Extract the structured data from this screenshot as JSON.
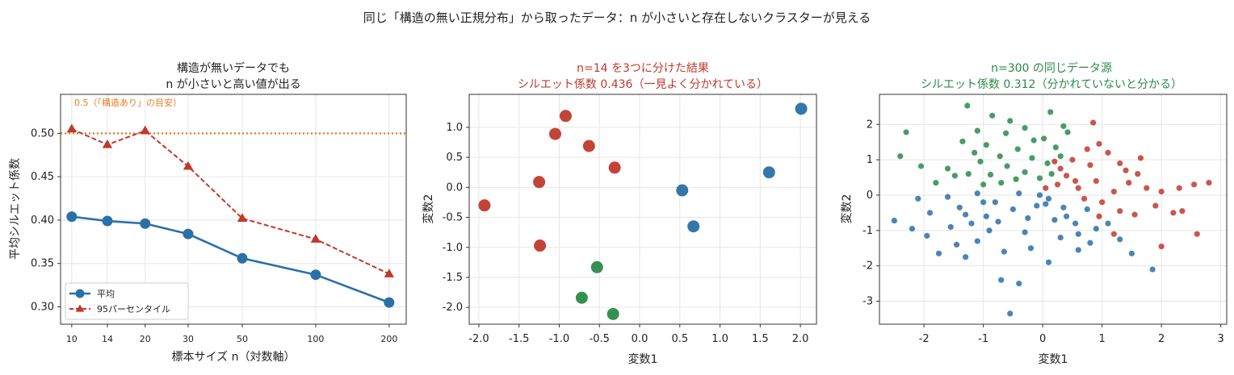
{
  "suptitle": "同じ「構造の無い正規分布」から取ったデータ：n が小さいと存在しないクラスターが見える",
  "colors": {
    "blue": "#2a70a8",
    "red": "#c0392b",
    "green": "#2a8a4a",
    "orange": "#e67e22"
  },
  "chart_data": [
    {
      "type": "line",
      "title_line1": "構造が無いデータでも",
      "title_line2": "n が小さいと高い値が出る",
      "xlabel": "標本サイズ n（対数軸）",
      "ylabel": "平均シルエット係数",
      "x_scale": "log",
      "x": [
        10,
        14,
        20,
        30,
        50,
        100,
        200
      ],
      "x_tick_labels": [
        "10",
        "14",
        "20",
        "30",
        "50",
        "100",
        "200"
      ],
      "xlim": [
        9,
        235
      ],
      "ylim": [
        0.28,
        0.545
      ],
      "y_ticks": [
        0.3,
        0.35,
        0.4,
        0.45,
        0.5
      ],
      "y_tick_labels": [
        "0.30",
        "0.35",
        "0.40",
        "0.45",
        "0.50"
      ],
      "series": [
        {
          "name": "平均",
          "values": [
            0.404,
            0.399,
            0.396,
            0.384,
            0.356,
            0.337,
            0.305
          ],
          "color": "#2a70a8",
          "marker": "circle",
          "style": "solid"
        },
        {
          "name": "95パーセンタイル",
          "values": [
            0.505,
            0.487,
            0.503,
            0.462,
            0.402,
            0.378,
            0.338
          ],
          "color": "#c0392b",
          "marker": "triangle",
          "style": "dashed"
        }
      ],
      "reference_line": {
        "y": 0.5,
        "label": "0.5（「構造あり」の目安）",
        "color": "#e67e22",
        "style": "dotted"
      },
      "legend": "lower-left",
      "grid": true
    },
    {
      "type": "scatter",
      "title_line1": "n=14 を3つに分けた結果",
      "title_line2": "シルエット係数 0.436（一見よく分かれている）",
      "title_color": "#c0392b",
      "xlabel": "変数1",
      "ylabel": "変数2",
      "xlim": [
        -2.12,
        2.2
      ],
      "ylim": [
        -2.28,
        1.55
      ],
      "x_ticks": [
        -2.0,
        -1.5,
        -1.0,
        -0.5,
        0.0,
        0.5,
        1.0,
        1.5,
        2.0
      ],
      "x_tick_labels": [
        "-2.0",
        "-1.5",
        "-1.0",
        "-0.5",
        "0.0",
        "0.5",
        "1.0",
        "1.5",
        "2.0"
      ],
      "y_ticks": [
        -2.0,
        -1.5,
        -1.0,
        -0.5,
        0.0,
        0.5,
        1.0
      ],
      "y_tick_labels": [
        "-2.0",
        "-1.5",
        "-1.0",
        "-0.5",
        "0.0",
        "0.5",
        "1.0"
      ],
      "grid": true,
      "points": [
        {
          "x": -0.92,
          "y": 1.19,
          "cluster": "red"
        },
        {
          "x": -1.05,
          "y": 0.89,
          "cluster": "red"
        },
        {
          "x": -0.63,
          "y": 0.69,
          "cluster": "red"
        },
        {
          "x": -0.31,
          "y": 0.33,
          "cluster": "red"
        },
        {
          "x": -1.25,
          "y": 0.09,
          "cluster": "red"
        },
        {
          "x": -1.93,
          "y": -0.3,
          "cluster": "red"
        },
        {
          "x": -1.24,
          "y": -0.97,
          "cluster": "red"
        },
        {
          "x": 2.01,
          "y": 1.31,
          "cluster": "blue"
        },
        {
          "x": 1.61,
          "y": 0.25,
          "cluster": "blue"
        },
        {
          "x": 0.53,
          "y": -0.05,
          "cluster": "blue"
        },
        {
          "x": 0.67,
          "y": -0.65,
          "cluster": "blue"
        },
        {
          "x": -0.53,
          "y": -1.33,
          "cluster": "green"
        },
        {
          "x": -0.72,
          "y": -1.84,
          "cluster": "green"
        },
        {
          "x": -0.33,
          "y": -2.11,
          "cluster": "green"
        }
      ]
    },
    {
      "type": "scatter",
      "title_line1": "n=300 の同じデータ源",
      "title_line2": "シルエット係数 0.312（分かれていないと分かる）",
      "title_color": "#2a8a4a",
      "xlabel": "変数1",
      "ylabel": "変数2",
      "xlim": [
        -2.75,
        3.1
      ],
      "ylim": [
        -3.65,
        2.85
      ],
      "x_ticks": [
        -2,
        -1,
        0,
        1,
        2,
        3
      ],
      "x_tick_labels": [
        "-2",
        "-1",
        "0",
        "1",
        "2",
        "3"
      ],
      "y_ticks": [
        -3,
        -2,
        -1,
        0,
        1,
        2
      ],
      "y_tick_labels": [
        "-3",
        "-2",
        "-1",
        "0",
        "1",
        "2"
      ],
      "grid": true,
      "points": [
        {
          "x": -1.27,
          "y": 2.53,
          "cluster": "green"
        },
        {
          "x": 0.13,
          "y": 2.35,
          "cluster": "green"
        },
        {
          "x": -0.85,
          "y": 2.25,
          "cluster": "green"
        },
        {
          "x": -0.55,
          "y": 2.1,
          "cluster": "green"
        },
        {
          "x": -2.3,
          "y": 1.78,
          "cluster": "green"
        },
        {
          "x": -1.1,
          "y": 1.82,
          "cluster": "green"
        },
        {
          "x": -0.3,
          "y": 1.9,
          "cluster": "green"
        },
        {
          "x": 0.35,
          "y": 1.95,
          "cluster": "green"
        },
        {
          "x": -0.62,
          "y": 1.75,
          "cluster": "green"
        },
        {
          "x": 0.42,
          "y": 1.78,
          "cluster": "green"
        },
        {
          "x": -1.35,
          "y": 1.52,
          "cluster": "green"
        },
        {
          "x": 0.02,
          "y": 1.6,
          "cluster": "green"
        },
        {
          "x": -0.15,
          "y": 1.55,
          "cluster": "green"
        },
        {
          "x": -0.95,
          "y": 1.42,
          "cluster": "green"
        },
        {
          "x": -2.05,
          "y": 0.82,
          "cluster": "green"
        },
        {
          "x": -2.4,
          "y": 1.1,
          "cluster": "green"
        },
        {
          "x": -1.6,
          "y": 0.75,
          "cluster": "green"
        },
        {
          "x": -1.05,
          "y": 0.95,
          "cluster": "green"
        },
        {
          "x": -0.72,
          "y": 1.1,
          "cluster": "green"
        },
        {
          "x": -0.42,
          "y": 1.3,
          "cluster": "green"
        },
        {
          "x": -0.18,
          "y": 1.05,
          "cluster": "green"
        },
        {
          "x": 0.22,
          "y": 1.35,
          "cluster": "green"
        },
        {
          "x": -1.25,
          "y": 0.6,
          "cluster": "green"
        },
        {
          "x": -0.88,
          "y": 0.58,
          "cluster": "green"
        },
        {
          "x": -0.6,
          "y": 0.82,
          "cluster": "green"
        },
        {
          "x": -0.3,
          "y": 0.65,
          "cluster": "green"
        },
        {
          "x": 0.08,
          "y": 0.9,
          "cluster": "green"
        },
        {
          "x": -1.48,
          "y": 0.55,
          "cluster": "green"
        },
        {
          "x": -0.45,
          "y": 0.45,
          "cluster": "green"
        },
        {
          "x": -0.05,
          "y": 0.48,
          "cluster": "green"
        },
        {
          "x": 0.3,
          "y": 1.1,
          "cluster": "green"
        },
        {
          "x": -1.8,
          "y": 0.35,
          "cluster": "green"
        },
        {
          "x": -0.7,
          "y": 0.35,
          "cluster": "green"
        },
        {
          "x": -1.0,
          "y": 0.3,
          "cluster": "green"
        },
        {
          "x": 0.15,
          "y": 0.6,
          "cluster": "green"
        },
        {
          "x": -1.15,
          "y": 1.2,
          "cluster": "green"
        },
        {
          "x": 0.85,
          "y": 2.05,
          "cluster": "red"
        },
        {
          "x": 0.95,
          "y": 1.45,
          "cluster": "red"
        },
        {
          "x": 1.1,
          "y": 1.2,
          "cluster": "red"
        },
        {
          "x": 0.75,
          "y": 1.3,
          "cluster": "red"
        },
        {
          "x": 0.5,
          "y": 1.0,
          "cluster": "red"
        },
        {
          "x": 0.3,
          "y": 0.75,
          "cluster": "red"
        },
        {
          "x": 1.3,
          "y": 0.9,
          "cluster": "red"
        },
        {
          "x": 1.6,
          "y": 0.6,
          "cluster": "red"
        },
        {
          "x": 1.45,
          "y": 0.35,
          "cluster": "red"
        },
        {
          "x": 1.75,
          "y": 0.2,
          "cluster": "red"
        },
        {
          "x": 2.0,
          "y": 0.1,
          "cluster": "red"
        },
        {
          "x": 2.3,
          "y": 0.2,
          "cluster": "red"
        },
        {
          "x": 2.55,
          "y": 0.3,
          "cluster": "red"
        },
        {
          "x": 2.8,
          "y": 0.35,
          "cluster": "red"
        },
        {
          "x": 0.9,
          "y": 0.4,
          "cluster": "red"
        },
        {
          "x": 0.6,
          "y": 0.2,
          "cluster": "red"
        },
        {
          "x": 1.2,
          "y": 0.1,
          "cluster": "red"
        },
        {
          "x": 0.4,
          "y": 0.55,
          "cluster": "red"
        },
        {
          "x": 1.0,
          "y": -0.2,
          "cluster": "red"
        },
        {
          "x": 1.3,
          "y": -0.45,
          "cluster": "red"
        },
        {
          "x": 0.7,
          "y": -0.1,
          "cluster": "red"
        },
        {
          "x": 1.55,
          "y": -0.55,
          "cluster": "red"
        },
        {
          "x": 1.9,
          "y": -0.3,
          "cluster": "red"
        },
        {
          "x": 2.2,
          "y": -0.5,
          "cluster": "red"
        },
        {
          "x": 2.35,
          "y": -0.45,
          "cluster": "red"
        },
        {
          "x": 2.6,
          "y": -1.1,
          "cluster": "red"
        },
        {
          "x": 2.0,
          "y": -1.45,
          "cluster": "red"
        },
        {
          "x": 1.2,
          "y": -1.1,
          "cluster": "red"
        },
        {
          "x": 0.95,
          "y": -0.6,
          "cluster": "red"
        },
        {
          "x": 0.55,
          "y": 0.4,
          "cluster": "red"
        },
        {
          "x": 0.25,
          "y": 0.3,
          "cluster": "red"
        },
        {
          "x": 1.65,
          "y": 1.05,
          "cluster": "red"
        },
        {
          "x": 0.2,
          "y": 0.95,
          "cluster": "red"
        },
        {
          "x": 0.05,
          "y": 0.2,
          "cluster": "red"
        },
        {
          "x": 1.4,
          "y": 0.7,
          "cluster": "red"
        },
        {
          "x": 0.8,
          "y": 0.85,
          "cluster": "red"
        },
        {
          "x": -2.5,
          "y": -0.72,
          "cluster": "blue"
        },
        {
          "x": -2.1,
          "y": -0.1,
          "cluster": "blue"
        },
        {
          "x": -1.9,
          "y": -0.5,
          "cluster": "blue"
        },
        {
          "x": -1.95,
          "y": -1.15,
          "cluster": "blue"
        },
        {
          "x": -1.75,
          "y": -1.65,
          "cluster": "blue"
        },
        {
          "x": -1.55,
          "y": -0.9,
          "cluster": "blue"
        },
        {
          "x": -1.4,
          "y": -0.35,
          "cluster": "blue"
        },
        {
          "x": -1.3,
          "y": -1.75,
          "cluster": "blue"
        },
        {
          "x": -1.1,
          "y": -1.3,
          "cluster": "blue"
        },
        {
          "x": -0.95,
          "y": -0.6,
          "cluster": "blue"
        },
        {
          "x": -0.8,
          "y": -0.2,
          "cluster": "blue"
        },
        {
          "x": -0.7,
          "y": -2.4,
          "cluster": "blue"
        },
        {
          "x": -0.4,
          "y": -2.5,
          "cluster": "blue"
        },
        {
          "x": -0.55,
          "y": -3.35,
          "cluster": "blue"
        },
        {
          "x": -0.2,
          "y": -1.5,
          "cluster": "blue"
        },
        {
          "x": 0.1,
          "y": -1.9,
          "cluster": "blue"
        },
        {
          "x": 0.3,
          "y": -1.2,
          "cluster": "blue"
        },
        {
          "x": 0.6,
          "y": -1.55,
          "cluster": "blue"
        },
        {
          "x": 0.8,
          "y": -1.35,
          "cluster": "blue"
        },
        {
          "x": 1.3,
          "y": -1.25,
          "cluster": "blue"
        },
        {
          "x": 1.5,
          "y": -1.65,
          "cluster": "blue"
        },
        {
          "x": 1.85,
          "y": -2.1,
          "cluster": "blue"
        },
        {
          "x": -0.1,
          "y": -0.3,
          "cluster": "blue"
        },
        {
          "x": 0.05,
          "y": -0.25,
          "cluster": "blue"
        },
        {
          "x": 0.1,
          "y": -0.1,
          "cluster": "blue"
        },
        {
          "x": -0.25,
          "y": -0.65,
          "cluster": "blue"
        },
        {
          "x": -0.5,
          "y": -0.4,
          "cluster": "blue"
        },
        {
          "x": 0.4,
          "y": -0.6,
          "cluster": "blue"
        },
        {
          "x": 0.55,
          "y": -0.8,
          "cluster": "blue"
        },
        {
          "x": -1.1,
          "y": 0.05,
          "cluster": "blue"
        },
        {
          "x": -1.2,
          "y": -0.8,
          "cluster": "blue"
        },
        {
          "x": -1.6,
          "y": -0.05,
          "cluster": "blue"
        },
        {
          "x": -0.9,
          "y": -1.0,
          "cluster": "blue"
        },
        {
          "x": -0.3,
          "y": -1.05,
          "cluster": "blue"
        },
        {
          "x": 0.2,
          "y": -0.7,
          "cluster": "blue"
        },
        {
          "x": 0.75,
          "y": -0.4,
          "cluster": "blue"
        },
        {
          "x": 0.9,
          "y": -0.95,
          "cluster": "blue"
        },
        {
          "x": 1.1,
          "y": -0.8,
          "cluster": "blue"
        },
        {
          "x": -0.65,
          "y": -1.6,
          "cluster": "blue"
        },
        {
          "x": -1.45,
          "y": -1.4,
          "cluster": "blue"
        },
        {
          "x": -0.05,
          "y": 0.0,
          "cluster": "blue"
        },
        {
          "x": -0.75,
          "y": -0.75,
          "cluster": "blue"
        },
        {
          "x": -2.2,
          "y": -0.95,
          "cluster": "blue"
        },
        {
          "x": -1.0,
          "y": -0.2,
          "cluster": "blue"
        },
        {
          "x": 0.35,
          "y": -0.35,
          "cluster": "blue"
        },
        {
          "x": -0.4,
          "y": 0.05,
          "cluster": "blue"
        },
        {
          "x": 0.6,
          "y": -1.1,
          "cluster": "blue"
        },
        {
          "x": -1.3,
          "y": -0.55,
          "cluster": "blue"
        }
      ]
    }
  ]
}
